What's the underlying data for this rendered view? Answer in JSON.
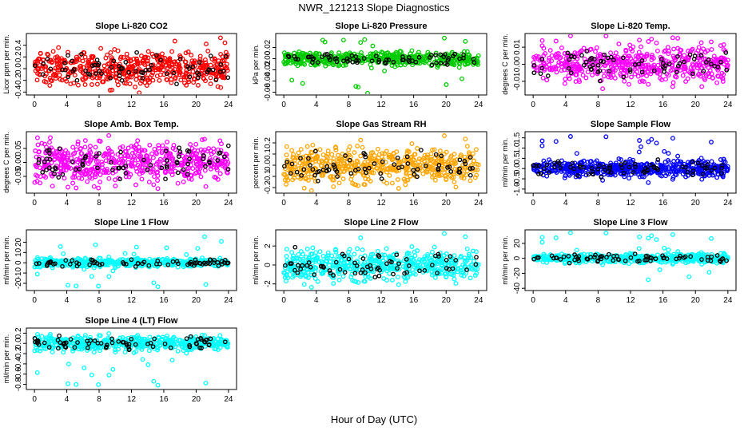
{
  "figure": {
    "title": "NWR_121213  Slope Diagnostics",
    "xlabel": "Hour of Day (UTC)"
  },
  "chart_data": [
    {
      "type": "scatter",
      "title": "Slope Li-820 CO2",
      "ylabel": "Licor ppm per min.",
      "color": "#ff0000",
      "xlim": [
        -1,
        25
      ],
      "ylim": [
        -0.45,
        0.6
      ],
      "yticks": [
        -0.4,
        -0.2,
        0.0,
        0.2,
        0.4
      ],
      "ytick_labels": [
        "-0.4",
        "-0.2",
        "0.0",
        "0.2",
        "0.4"
      ],
      "xticks": [
        0,
        4,
        8,
        12,
        16,
        20,
        24
      ],
      "xtick_labels": [
        "0",
        "4",
        "8",
        "12",
        "16",
        "20",
        "24"
      ],
      "spread": 0.14,
      "outlier_max": 0.55,
      "outlier_min": -0.38,
      "grid": false
    },
    {
      "type": "scatter",
      "title": "Slope Li-820 Pressure",
      "ylabel": "kPa per min.",
      "color": "#00cc00",
      "xlim": [
        -1,
        25
      ],
      "ylim": [
        -0.065,
        0.045
      ],
      "yticks": [
        -0.06,
        -0.04,
        -0.02,
        0.0,
        0.02
      ],
      "ytick_labels": [
        "-0.06",
        "-0.04",
        "-0.02",
        "0.00",
        "0.02"
      ],
      "xticks": [
        0,
        4,
        8,
        12,
        16,
        20,
        24
      ],
      "xtick_labels": [
        "0",
        "4",
        "8",
        "12",
        "16",
        "20",
        "24"
      ],
      "spread": 0.006,
      "outlier_max": 0.04,
      "outlier_min": -0.062,
      "grid": false
    },
    {
      "type": "scatter",
      "title": "Slope Li-820 Temp.",
      "ylabel": "degrees C per min.",
      "color": "#ff00ff",
      "xlim": [
        -1,
        25
      ],
      "ylim": [
        -0.018,
        0.018
      ],
      "yticks": [
        -0.01,
        0.0,
        0.01
      ],
      "ytick_labels": [
        "-0.01",
        "0.00",
        "0.01"
      ],
      "xticks": [
        0,
        4,
        8,
        12,
        16,
        20,
        24
      ],
      "xtick_labels": [
        "0",
        "4",
        "8",
        "12",
        "16",
        "20",
        "24"
      ],
      "spread": 0.005,
      "outlier_max": 0.017,
      "outlier_min": -0.017,
      "grid": false
    },
    {
      "type": "scatter",
      "title": "Slope Amb. Box Temp.",
      "ylabel": "degrees C per min.",
      "color": "#ff00ff",
      "xlim": [
        -1,
        25
      ],
      "ylim": [
        -0.11,
        0.11
      ],
      "yticks": [
        -0.05,
        0.0,
        0.05
      ],
      "ytick_labels": [
        "-0.05",
        "0.00",
        "0.05"
      ],
      "xticks": [
        0,
        4,
        8,
        12,
        16,
        20,
        24
      ],
      "xtick_labels": [
        "0",
        "4",
        "8",
        "12",
        "16",
        "20",
        "24"
      ],
      "spread": 0.035,
      "outlier_max": 0.1,
      "outlier_min": -0.1,
      "grid": false
    },
    {
      "type": "scatter",
      "title": "Slope Gas Stream RH",
      "ylabel": "percent per min.",
      "color": "#ffa500",
      "xlim": [
        -1,
        25
      ],
      "ylim": [
        -0.25,
        0.3
      ],
      "yticks": [
        -0.2,
        -0.1,
        0.0,
        0.1,
        0.2
      ],
      "ytick_labels": [
        "-0.2",
        "-0.1",
        "0.0",
        "0.1",
        "0.2"
      ],
      "xticks": [
        0,
        4,
        8,
        12,
        16,
        20,
        24
      ],
      "xtick_labels": [
        "0",
        "4",
        "8",
        "12",
        "16",
        "20",
        "24"
      ],
      "spread": 0.08,
      "outlier_max": 0.28,
      "outlier_min": -0.24,
      "grid": false
    },
    {
      "type": "scatter",
      "title": "Slope Sample Flow",
      "ylabel": "ml/min per min.",
      "color": "#0000ff",
      "xlim": [
        -1,
        25
      ],
      "ylim": [
        -1.2,
        1.8
      ],
      "yticks": [
        -1.0,
        -0.5,
        0.0,
        0.5,
        1.0,
        1.5
      ],
      "ytick_labels": [
        "-1.0",
        "-0.5",
        "0.0",
        "0.5",
        "1.0",
        "1.5"
      ],
      "xticks": [
        0,
        4,
        8,
        12,
        16,
        20,
        24
      ],
      "xtick_labels": [
        "0",
        "4",
        "8",
        "12",
        "16",
        "20",
        "24"
      ],
      "spread": 0.2,
      "outlier_max": 1.6,
      "outlier_min": -1.1,
      "grid": false
    },
    {
      "type": "scatter",
      "title": "Slope Line 1 Flow",
      "ylabel": "ml/min per min.",
      "color": "#00ffff",
      "xlim": [
        -1,
        25
      ],
      "ylim": [
        -27,
        32
      ],
      "yticks": [
        -20,
        -10,
        0,
        10,
        20
      ],
      "ytick_labels": [
        "-20",
        "-10",
        "0",
        "10",
        "20"
      ],
      "xticks": [
        0,
        4,
        8,
        12,
        16,
        20,
        24
      ],
      "xtick_labels": [
        "0",
        "4",
        "8",
        "12",
        "16",
        "20",
        "24"
      ],
      "spread": 2,
      "outlier_max": 30,
      "outlier_min": -25,
      "grid": false
    },
    {
      "type": "scatter",
      "title": "Slope Line 2 Flow",
      "ylabel": "ml/min per min.",
      "color": "#00ffff",
      "xlim": [
        -1,
        25
      ],
      "ylim": [
        -2.7,
        3.7
      ],
      "yticks": [
        -2,
        0,
        2
      ],
      "ytick_labels": [
        "-2",
        "0",
        "2"
      ],
      "xticks": [
        0,
        4,
        8,
        12,
        16,
        20,
        24
      ],
      "xtick_labels": [
        "0",
        "4",
        "8",
        "12",
        "16",
        "20",
        "24"
      ],
      "spread": 0.8,
      "outlier_max": 3.5,
      "outlier_min": -2.5,
      "grid": false
    },
    {
      "type": "scatter",
      "title": "Slope Line 3 Flow",
      "ylabel": "ml/min per min.",
      "color": "#00ffff",
      "xlim": [
        -1,
        25
      ],
      "ylim": [
        -43,
        38
      ],
      "yticks": [
        -40,
        -20,
        0,
        20
      ],
      "ytick_labels": [
        "-40",
        "-20",
        "0",
        "20"
      ],
      "xticks": [
        0,
        4,
        8,
        12,
        16,
        20,
        24
      ],
      "xtick_labels": [
        "0",
        "4",
        "8",
        "12",
        "16",
        "20",
        "24"
      ],
      "spread": 3,
      "outlier_max": 35,
      "outlier_min": -40,
      "grid": false
    },
    {
      "type": "scatter",
      "title": "Slope Line 4 (LT) Flow",
      "ylabel": "ml/min per min.",
      "color": "#00ffff",
      "xlim": [
        -1,
        25
      ],
      "ylim": [
        -0.9,
        0.3
      ],
      "yticks": [
        -0.8,
        -0.6,
        -0.4,
        -0.2,
        0.0,
        0.2
      ],
      "ytick_labels": [
        "-0.8",
        "-0.6",
        "-0.4",
        "-0.2",
        "0.0",
        "0.2"
      ],
      "xticks": [
        0,
        4,
        8,
        12,
        16,
        20,
        24
      ],
      "xtick_labels": [
        "0",
        "4",
        "8",
        "12",
        "16",
        "20",
        "24"
      ],
      "spread": 0.07,
      "outlier_max": 0.25,
      "outlier_min": -0.85,
      "grid": false
    }
  ]
}
